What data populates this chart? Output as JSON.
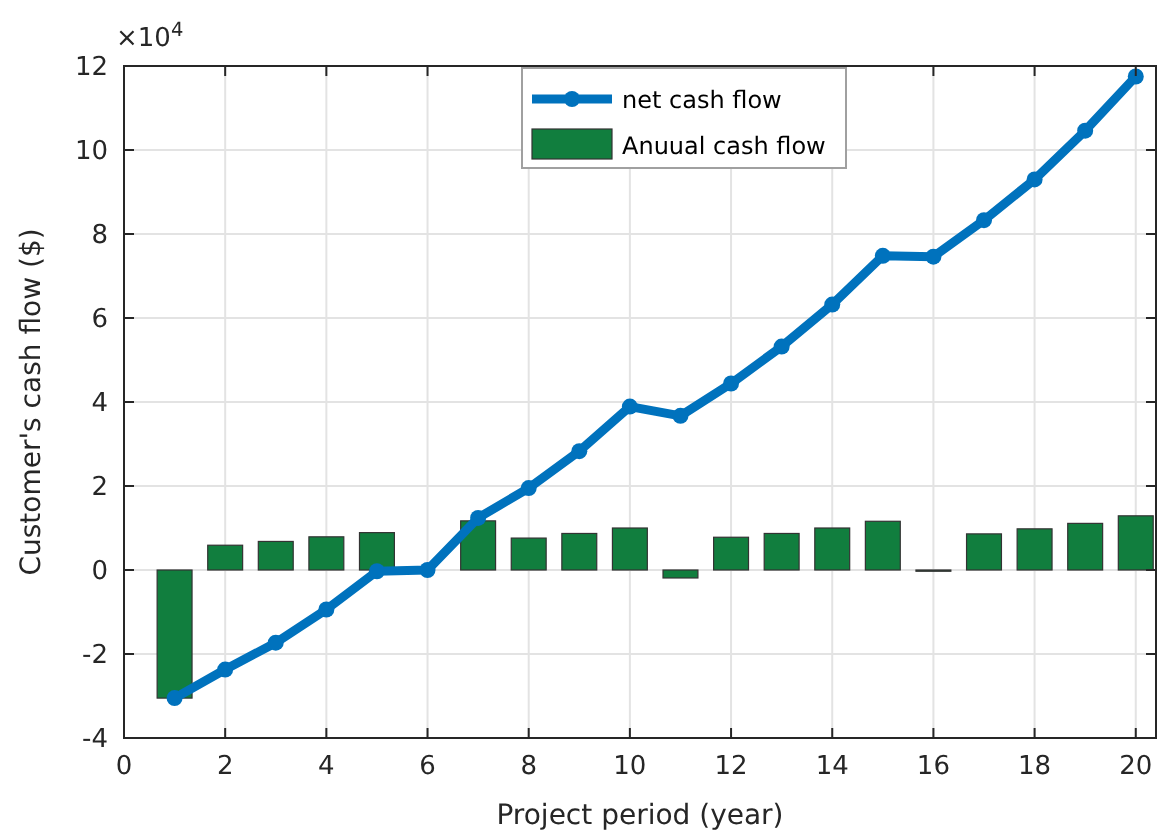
{
  "chart_data": {
    "type": "bar",
    "xlabel": "Project period (year)",
    "ylabel": "Customer's cash flow ($)",
    "annotations": [
      "×10$^{4}$"
    ],
    "x": [
      1,
      2,
      3,
      4,
      5,
      6,
      7,
      8,
      9,
      10,
      11,
      12,
      13,
      14,
      15,
      16,
      17,
      18,
      19,
      20
    ],
    "series": [
      {
        "name": "net cash flow",
        "type": "line",
        "color": "#0072bd",
        "marker": "circle",
        "values": [
          -3.05,
          -2.37,
          -1.73,
          -0.94,
          -0.03,
          0,
          1.24,
          1.95,
          2.83,
          3.89,
          3.67,
          4.44,
          5.32,
          6.32,
          7.48,
          7.46,
          8.33,
          9.3,
          10.46,
          11.75
        ]
      },
      {
        "name": "Anuual cash flow",
        "color": "#117e3e",
        "values": [
          -3.05,
          0.59,
          0.68,
          0.79,
          0.89,
          0,
          1.17,
          0.76,
          0.87,
          1.0,
          -0.19,
          0.78,
          0.87,
          1.0,
          1.16,
          -0.03,
          0.86,
          0.98,
          1.11,
          1.29
        ]
      }
    ],
    "xlim": [
      0,
      20.4
    ],
    "xticks": [
      0,
      2,
      4,
      6,
      8,
      10,
      12,
      14,
      16,
      18,
      20
    ],
    "ylim": [
      -4,
      12
    ],
    "yticks": [
      -4,
      -2,
      0,
      2,
      4,
      6,
      8,
      10,
      12
    ],
    "grid": true,
    "legend": "top"
  }
}
